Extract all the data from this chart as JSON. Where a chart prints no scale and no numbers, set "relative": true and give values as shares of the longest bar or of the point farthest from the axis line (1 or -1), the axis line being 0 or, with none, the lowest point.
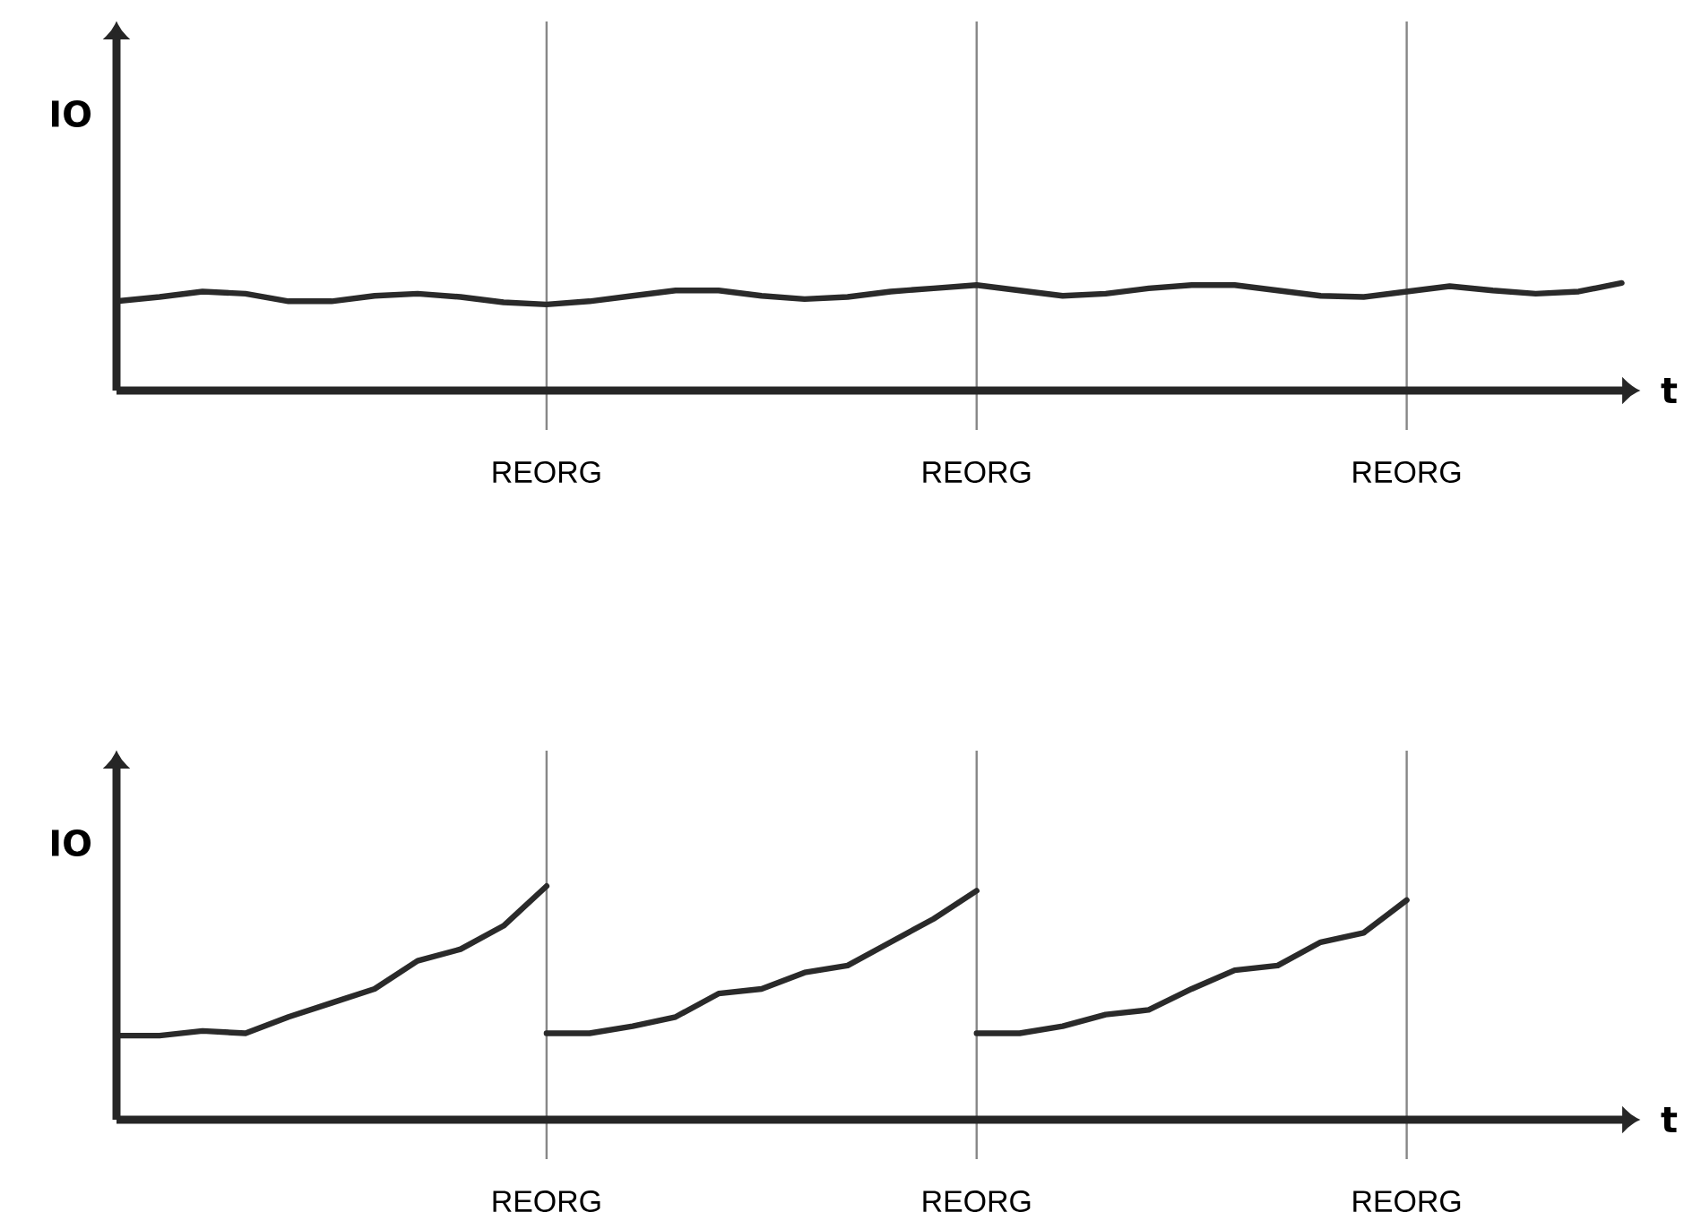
{
  "chart_data": [
    {
      "type": "line",
      "xlabel": "t",
      "ylabel": "IO",
      "relative": true,
      "grid": "x",
      "categories": [
        null,
        null,
        null,
        null,
        null,
        null,
        null,
        null,
        null,
        null,
        "REORG",
        null,
        null,
        null,
        null,
        null,
        null,
        null,
        null,
        null,
        "REORG",
        null,
        null,
        null,
        null,
        null,
        null,
        null,
        null,
        null,
        "REORG",
        null,
        null,
        null,
        null,
        null
      ],
      "series": [
        {
          "color": "#2a2a2a",
          "values": [
            0.83,
            0.87,
            0.92,
            0.9,
            0.83,
            0.83,
            0.88,
            0.9,
            0.87,
            0.82,
            0.8,
            0.83,
            0.88,
            0.93,
            0.93,
            0.88,
            0.85,
            0.87,
            0.92,
            0.95,
            0.98,
            0.93,
            0.88,
            0.9,
            0.95,
            0.98,
            0.98,
            0.93,
            0.88,
            0.87,
            0.92,
            0.97,
            0.93,
            0.9,
            0.92,
            1
          ]
        }
      ]
    },
    {
      "type": "line",
      "xlabel": "t",
      "ylabel": "IO",
      "relative": true,
      "grid": "x",
      "categories": [
        null,
        null,
        null,
        null,
        null,
        null,
        null,
        null,
        null,
        null,
        "REORG",
        null,
        null,
        null,
        null,
        null,
        null,
        null,
        null,
        null,
        "REORG",
        null,
        null,
        null,
        null,
        null,
        null,
        null,
        null,
        null,
        "REORG",
        null,
        null,
        null,
        null,
        null
      ],
      "series": [
        {
          "color": "#2a2a2a",
          "values": [
            0.36,
            0.36,
            0.38,
            0.37,
            0.44,
            0.5,
            0.56,
            0.68,
            0.73,
            0.83,
            1,
            null,
            null,
            null,
            null,
            null,
            null,
            null,
            null,
            null,
            null,
            null,
            null,
            null,
            null,
            null,
            null,
            null,
            null,
            null,
            null,
            null,
            null,
            null,
            null,
            null
          ]
        },
        {
          "color": "#2a2a2a",
          "values": [
            null,
            null,
            null,
            null,
            null,
            null,
            null,
            null,
            null,
            null,
            0.37,
            0.37,
            0.4,
            0.44,
            0.54,
            0.56,
            0.63,
            0.66,
            0.76,
            0.86,
            0.98,
            null,
            null,
            null,
            null,
            null,
            null,
            null,
            null,
            null,
            null,
            null,
            null,
            null,
            null,
            null
          ]
        },
        {
          "color": "#2a2a2a",
          "values": [
            null,
            null,
            null,
            null,
            null,
            null,
            null,
            null,
            null,
            null,
            null,
            null,
            null,
            null,
            null,
            null,
            null,
            null,
            null,
            null,
            0.37,
            0.37,
            0.4,
            0.45,
            0.47,
            0.56,
            0.64,
            0.66,
            0.76,
            0.8,
            0.94,
            null,
            null,
            null,
            null,
            null
          ]
        }
      ]
    }
  ]
}
